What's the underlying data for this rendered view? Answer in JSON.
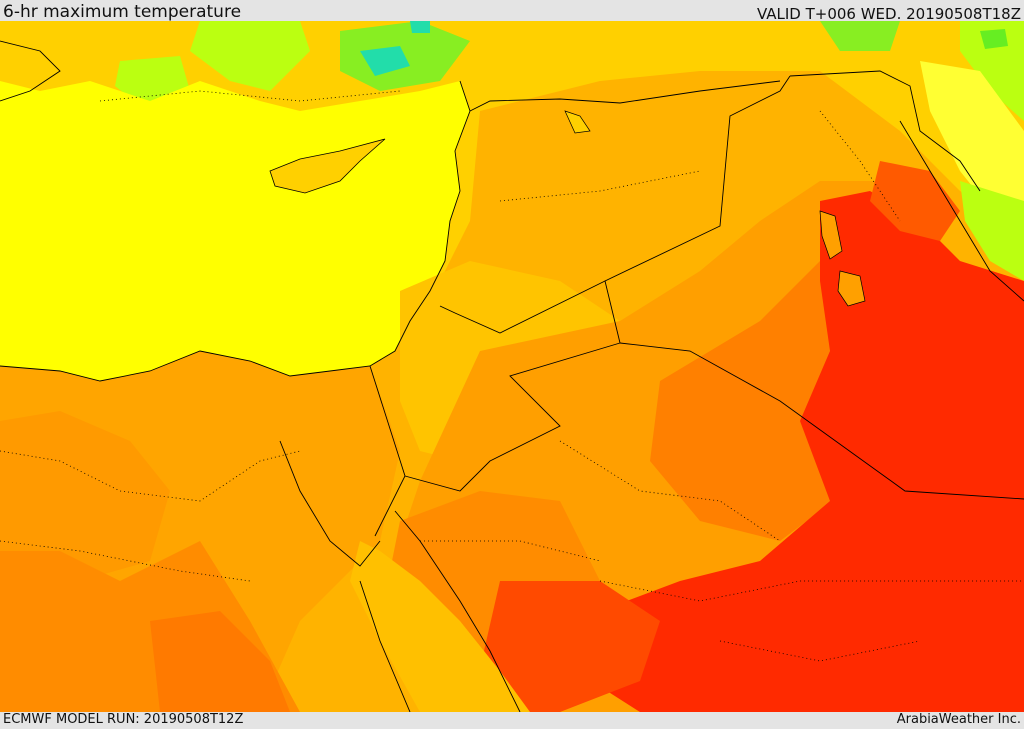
{
  "header": {
    "title": "6-hr maximum temperature",
    "valid_label": "VALID T+006 WED. 20190508T18Z"
  },
  "footer": {
    "model_run": "ECMWF MODEL RUN: 20190508T12Z",
    "credit": "ArabiaWeather Inc."
  },
  "map": {
    "palette": {
      "sea": "#ffff00",
      "cool_green": "#66ee22",
      "light_green": "#bbff11",
      "cyan": "#22ddaa",
      "yellow_orange": "#ffd000",
      "orange_light": "#ffb300",
      "orange": "#ff8c00",
      "orange_dark": "#ff6a00",
      "red": "#ff2a00",
      "border_color": "#000000"
    }
  }
}
